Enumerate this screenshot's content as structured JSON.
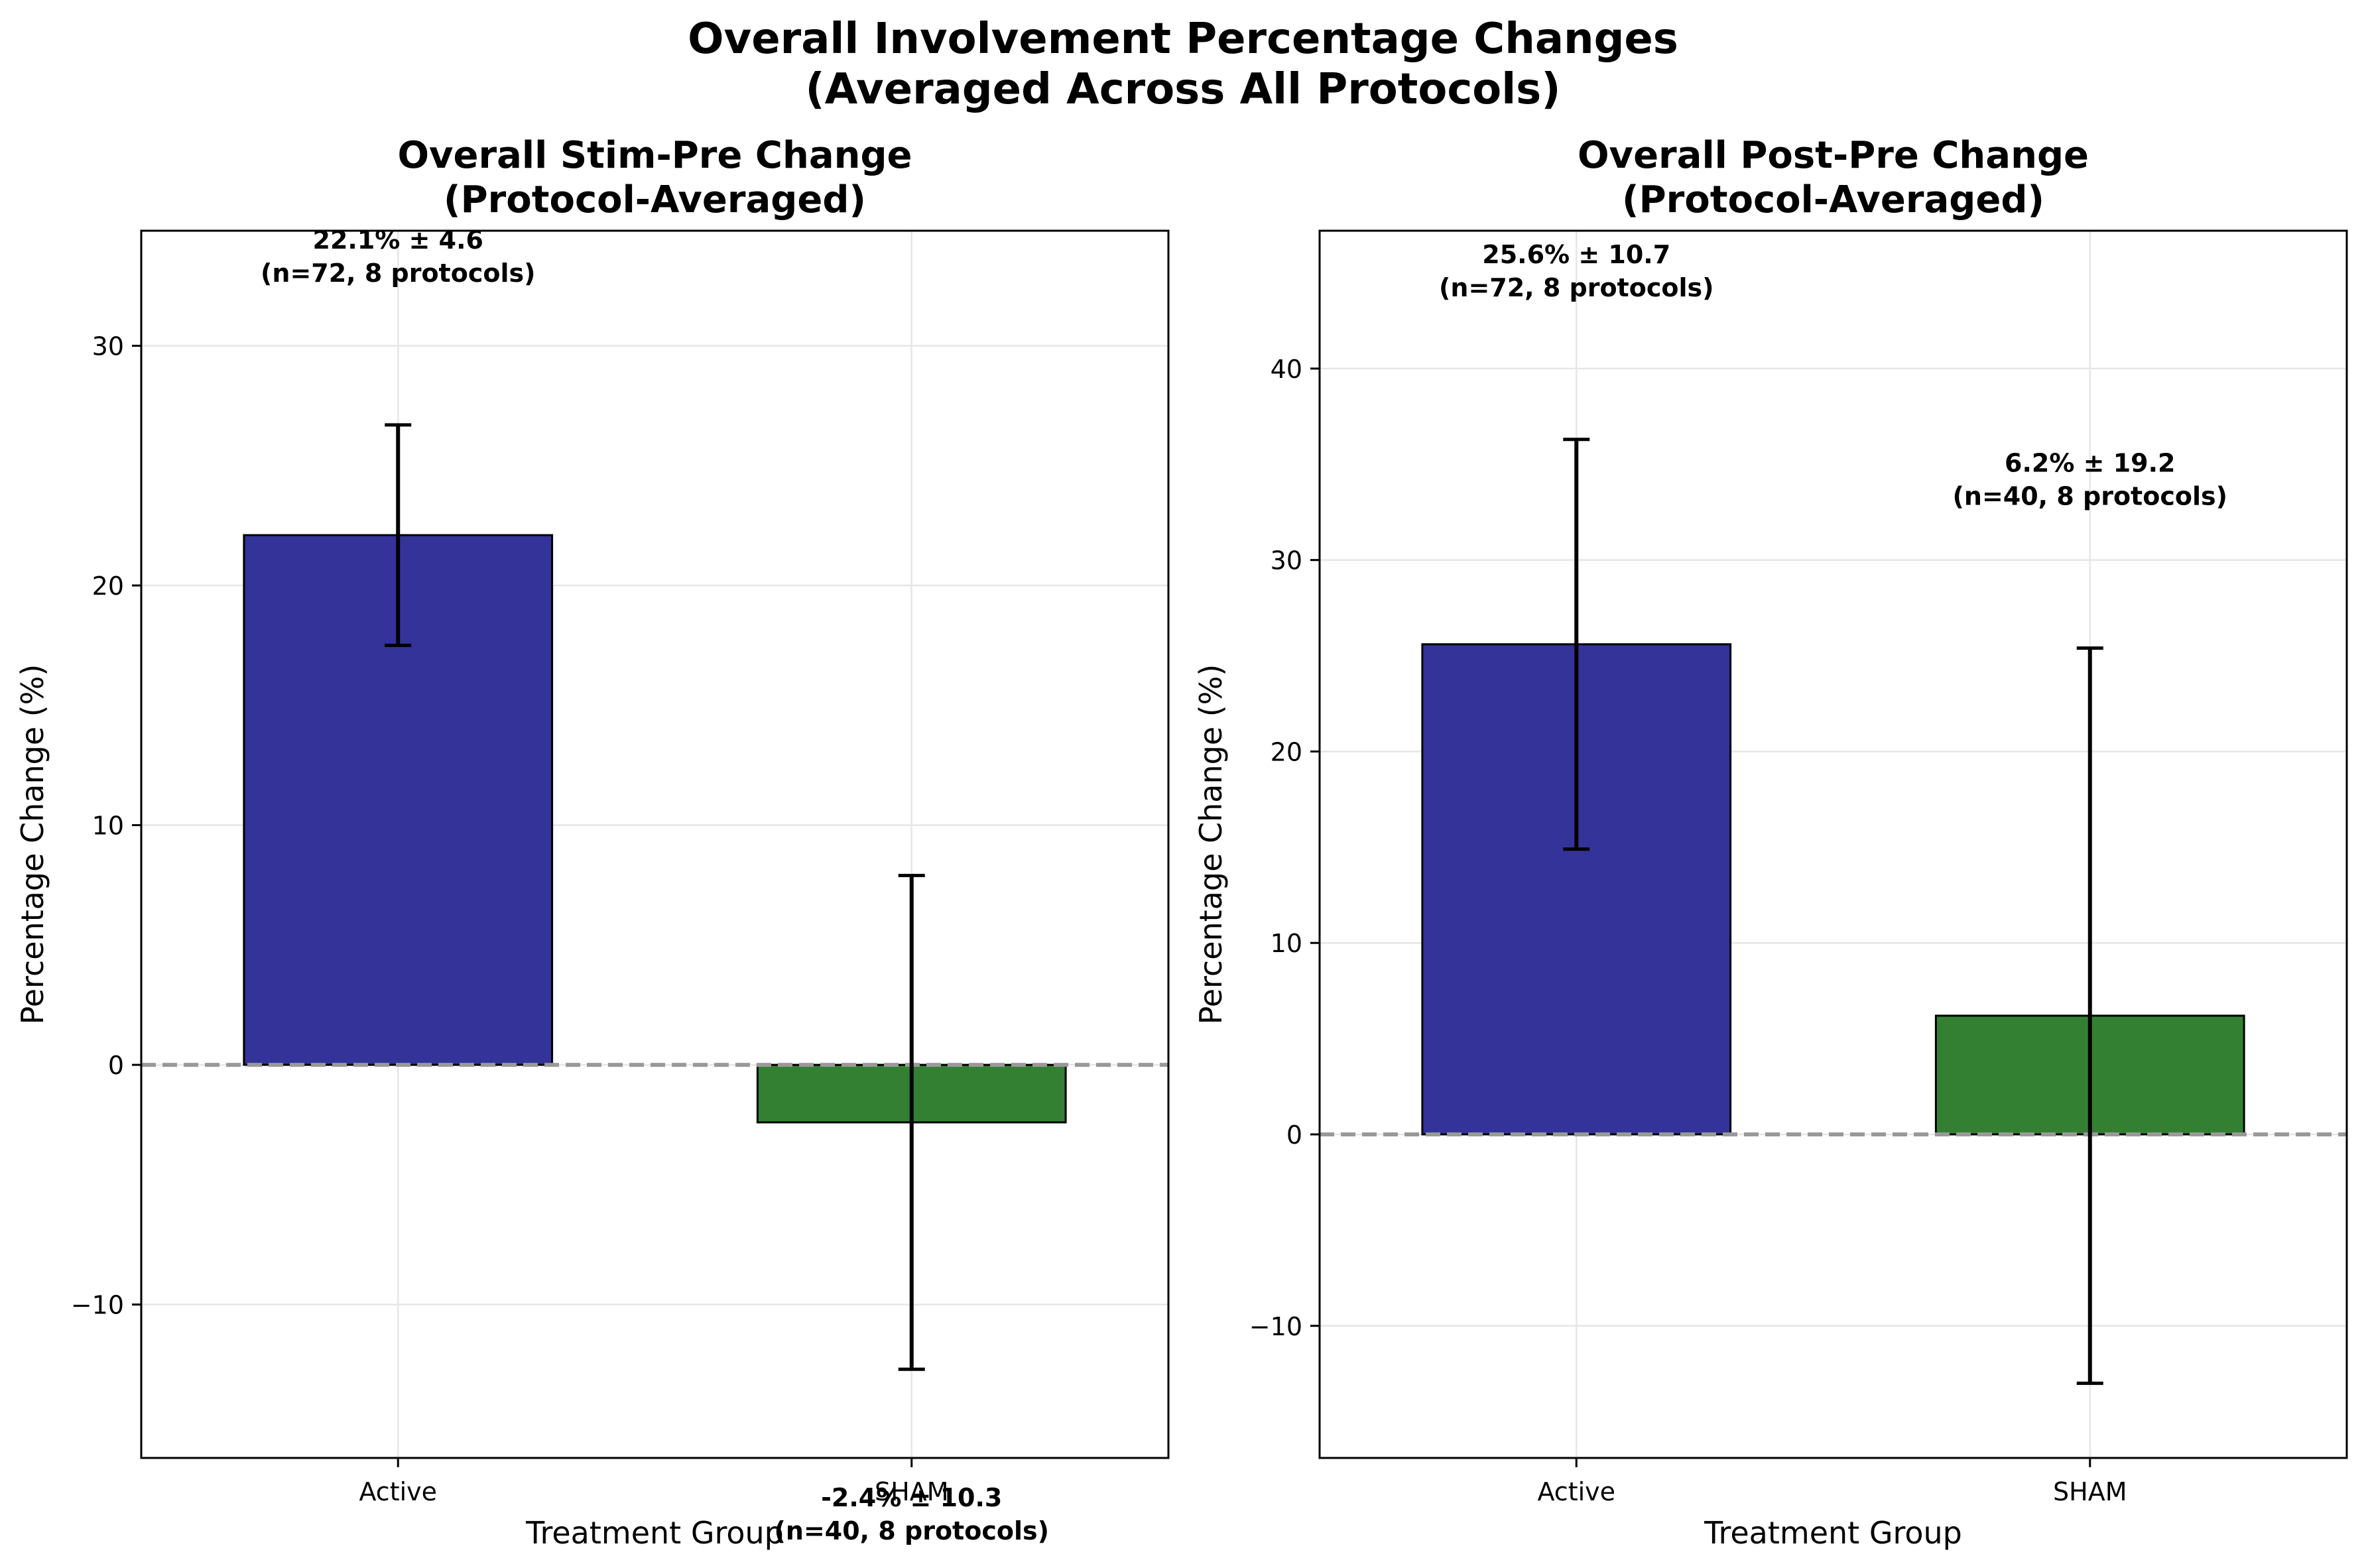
{
  "figure": {
    "title_line1": "Overall Involvement Percentage Changes",
    "title_line2": "(Averaged Across All Protocols)"
  },
  "colors": {
    "active": "#333399",
    "sham": "#338033",
    "bar_edge": "#000000",
    "zero_line": "#999999",
    "grid": "#e6e6e6"
  },
  "chart_data": [
    {
      "type": "bar",
      "title_line1": "Overall Stim-Pre Change",
      "title_line2": "(Protocol-Averaged)",
      "xlabel": "Treatment Group",
      "ylabel": "Percentage Change (%)",
      "categories": [
        "Active",
        "SHAM"
      ],
      "values": [
        22.1,
        -2.4
      ],
      "errors": [
        4.6,
        10.3
      ],
      "annotations": [
        {
          "line1": "22.1% ± 4.6",
          "line2": "(n=72, 8 protocols)"
        },
        {
          "line1": "-2.4% ± 10.3",
          "line2": "(n=40, 8 protocols)"
        }
      ],
      "yticks": [
        -10,
        0,
        10,
        20,
        30
      ],
      "ytick_labels": [
        "−10",
        "0",
        "10",
        "20",
        "30"
      ],
      "ylim": [
        -16.4,
        34.8
      ],
      "grid": true,
      "zero_line": true
    },
    {
      "type": "bar",
      "title_line1": "Overall Post-Pre Change",
      "title_line2": "(Protocol-Averaged)",
      "xlabel": "Treatment Group",
      "ylabel": "Percentage Change (%)",
      "categories": [
        "Active",
        "SHAM"
      ],
      "values": [
        25.6,
        6.2
      ],
      "errors": [
        10.7,
        19.2
      ],
      "annotations": [
        {
          "line1": "25.6% ± 10.7",
          "line2": "(n=72, 8 protocols)"
        },
        {
          "line1": "6.2% ± 19.2",
          "line2": "(n=40, 8 protocols)"
        }
      ],
      "yticks": [
        -10,
        0,
        10,
        20,
        30,
        40
      ],
      "ytick_labels": [
        "−10",
        "0",
        "10",
        "20",
        "30",
        "40"
      ],
      "ylim": [
        -16.9,
        47.2
      ],
      "grid": true,
      "zero_line": true
    }
  ]
}
